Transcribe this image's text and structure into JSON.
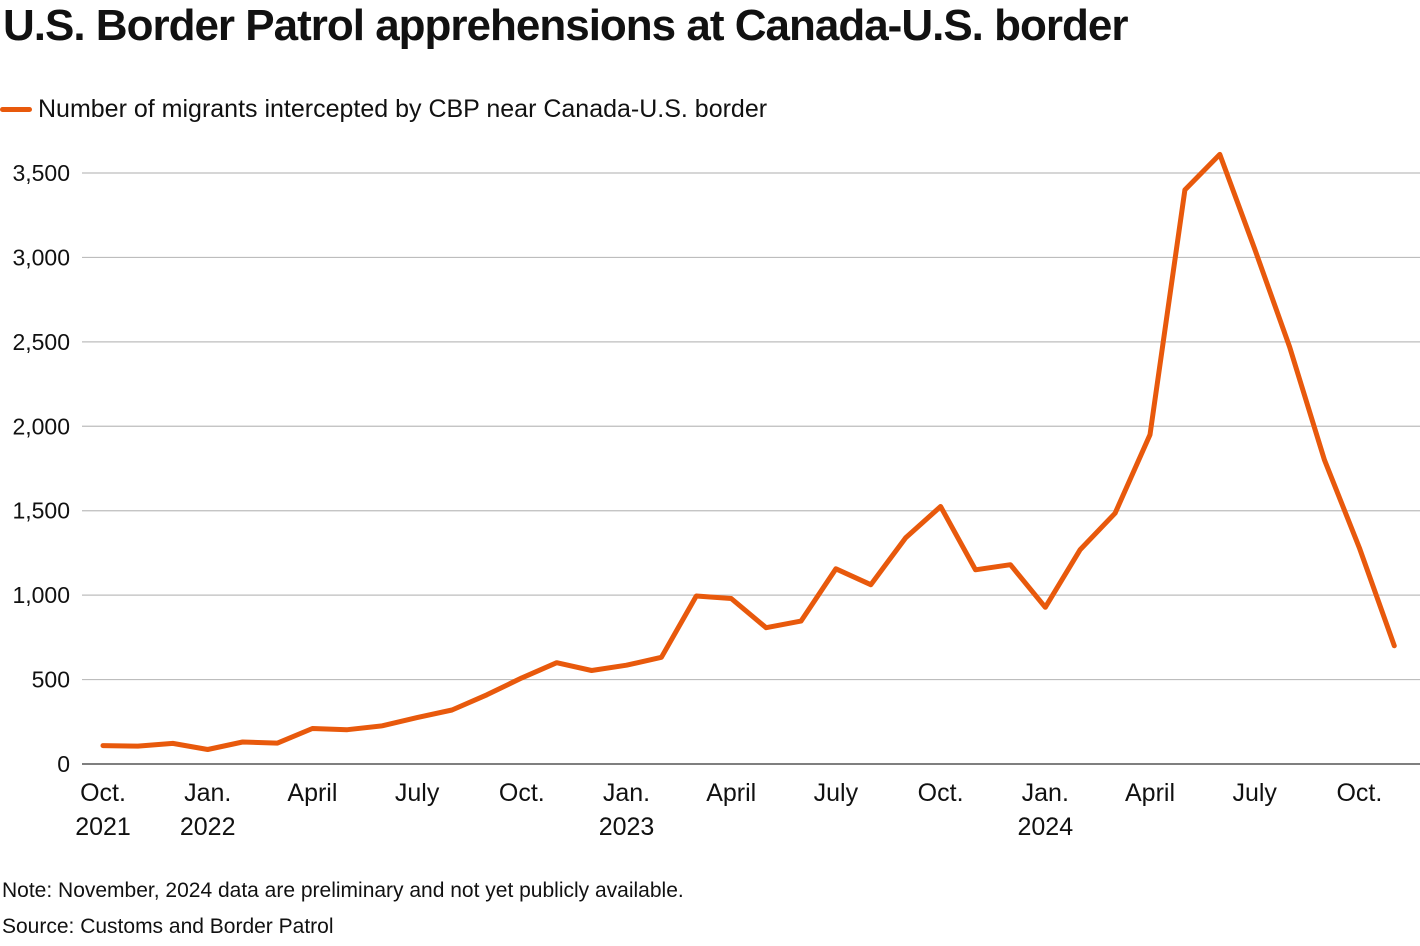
{
  "chart_data": {
    "type": "line",
    "title": "U.S. Border Patrol apprehensions at Canada-U.S. border",
    "xlabel": "",
    "ylabel": "",
    "ylim": [
      0,
      3500
    ],
    "yticks": [
      0,
      500,
      1000,
      1500,
      2000,
      2500,
      3000,
      3500
    ],
    "ytick_labels": [
      "0",
      "500",
      "1,000",
      "1,500",
      "2,000",
      "2,500",
      "3,000",
      "3,500"
    ],
    "grid": true,
    "legend_position": "top-left",
    "color": "#e8590c",
    "x": [
      "Oct. 2021",
      "Nov. 2021",
      "Dec. 2021",
      "Jan. 2022",
      "Feb. 2022",
      "Mar. 2022",
      "Apr. 2022",
      "May 2022",
      "Jun. 2022",
      "Jul. 2022",
      "Aug. 2022",
      "Sep. 2022",
      "Oct. 2022",
      "Nov. 2022",
      "Dec. 2022",
      "Jan. 2023",
      "Feb. 2023",
      "Mar. 2023",
      "Apr. 2023",
      "May 2023",
      "Jun. 2023",
      "Jul. 2023",
      "Aug. 2023",
      "Sep. 2023",
      "Oct. 2023",
      "Nov. 2023",
      "Dec. 2023",
      "Jan. 2024",
      "Feb. 2024",
      "Mar. 2024",
      "Apr. 2024",
      "May 2024",
      "Jun. 2024",
      "Jul. 2024",
      "Aug. 2024",
      "Sep. 2024",
      "Oct. 2024",
      "Nov. 2024"
    ],
    "series": [
      {
        "name": "Number of migrants intercepted by CBP near Canada-U.S. border",
        "values": [
          109,
          106,
          122,
          86,
          130,
          124,
          210,
          203,
          226,
          275,
          320,
          410,
          510,
          600,
          554,
          585,
          632,
          995,
          980,
          807,
          846,
          1156,
          1062,
          1340,
          1525,
          1150,
          1180,
          928,
          1270,
          1485,
          1950,
          3400,
          3610,
          3050,
          2470,
          1800,
          1280,
          700
        ]
      }
    ],
    "xtick_labels": [
      {
        "index": 0,
        "lines": [
          "Oct.",
          "2021"
        ]
      },
      {
        "index": 3,
        "lines": [
          "Jan.",
          "2022"
        ]
      },
      {
        "index": 6,
        "lines": [
          "April"
        ]
      },
      {
        "index": 9,
        "lines": [
          "July"
        ]
      },
      {
        "index": 12,
        "lines": [
          "Oct."
        ]
      },
      {
        "index": 15,
        "lines": [
          "Jan.",
          "2023"
        ]
      },
      {
        "index": 18,
        "lines": [
          "April"
        ]
      },
      {
        "index": 21,
        "lines": [
          "July"
        ]
      },
      {
        "index": 24,
        "lines": [
          "Oct."
        ]
      },
      {
        "index": 27,
        "lines": [
          "Jan.",
          "2024"
        ]
      },
      {
        "index": 30,
        "lines": [
          "April"
        ]
      },
      {
        "index": 33,
        "lines": [
          "July"
        ]
      },
      {
        "index": 36,
        "lines": [
          "Oct."
        ]
      }
    ]
  },
  "legend": {
    "label": "Number of migrants intercepted by CBP near Canada-U.S. border"
  },
  "footer": {
    "note": "Note: November, 2024 data are preliminary and not yet publicly available.",
    "source": "Source: Customs and Border Patrol"
  }
}
